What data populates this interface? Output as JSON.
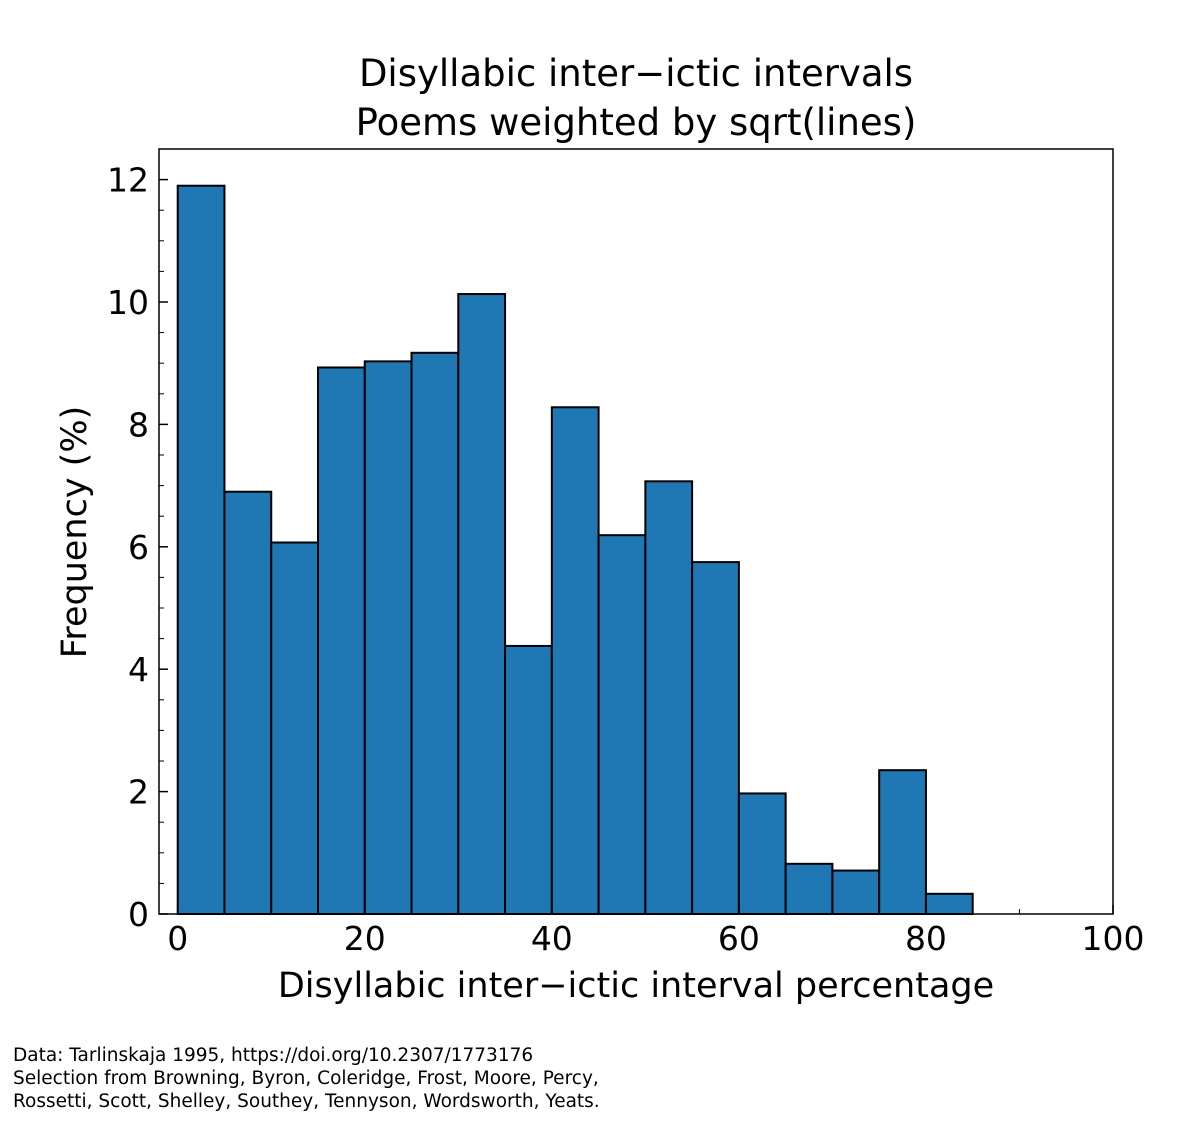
{
  "chart_data": {
    "type": "bar",
    "title": [
      "Disyllabic inter−ictic intervals",
      "Poems weighted by sqrt(lines)"
    ],
    "xlabel": "Disyllabic inter−ictic interval percentage",
    "ylabel": "Frequency (%)",
    "xlim": [
      -2,
      100
    ],
    "ylim": [
      0,
      12.5
    ],
    "bin_edges": [
      0,
      5,
      10,
      15,
      20,
      25,
      30,
      35,
      40,
      45,
      50,
      55,
      60,
      65,
      70,
      75,
      80,
      85
    ],
    "values": [
      11.9,
      6.9,
      6.07,
      8.93,
      9.03,
      9.17,
      10.13,
      4.38,
      8.28,
      6.19,
      7.07,
      5.75,
      1.97,
      0.82,
      0.71,
      2.35,
      0.33
    ],
    "xticks": [
      0,
      20,
      40,
      60,
      80,
      100
    ],
    "xtick_labels": [
      "0",
      "20",
      "40",
      "60",
      "80",
      "100"
    ],
    "xminor_ticks": [
      10,
      30,
      50,
      70,
      90
    ],
    "yticks": [
      0,
      2,
      4,
      6,
      8,
      10,
      12
    ],
    "ytick_labels": [
      "0",
      "2",
      "4",
      "6",
      "8",
      "10",
      "12"
    ],
    "yminor_ticks": [
      0.5,
      1,
      1.5,
      2.5,
      3,
      3.5,
      4.5,
      5,
      5.5,
      6.5,
      7,
      7.5,
      8.5,
      9,
      9.5,
      10.5,
      11,
      11.5
    ],
    "bar_color": "#1f77b4",
    "edge_color": "#000000",
    "grid": false
  },
  "footnote": {
    "lines": [
      "Data: Tarlinskaja 1995, https://doi.org/10.2307/1773176",
      "Selection from Browning, Byron, Coleridge, Frost, Moore, Percy,",
      "Rossetti, Scott, Shelley, Southey, Tennyson, Wordsworth, Yeats."
    ]
  }
}
